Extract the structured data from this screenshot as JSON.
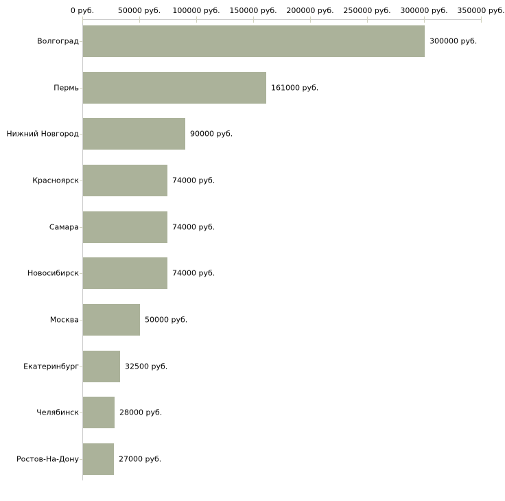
{
  "chart_data": {
    "type": "bar",
    "orientation": "horizontal",
    "title": "",
    "categories": [
      "Волгоград",
      "Пермь",
      "Нижний Новгород",
      "Красноярск",
      "Самара",
      "Новосибирск",
      "Москва",
      "Екатеринбург",
      "Челябинск",
      "Ростов-На-Дону"
    ],
    "values": [
      300000,
      161000,
      90000,
      74000,
      74000,
      74000,
      50000,
      32500,
      28000,
      27000
    ],
    "value_labels": [
      "300000 руб.",
      "161000 руб.",
      "90000 руб.",
      "74000 руб.",
      "74000 руб.",
      "74000 руб.",
      "50000 руб.",
      "32500 руб.",
      "28000 руб.",
      "27000 руб."
    ],
    "x_tick_values": [
      0,
      50000,
      100000,
      150000,
      200000,
      250000,
      300000,
      350000
    ],
    "x_tick_labels": [
      "0 руб.",
      "50000 руб.",
      "100000 руб.",
      "150000 руб.",
      "200000 руб.",
      "250000 руб.",
      "300000 руб.",
      "350000 руб."
    ],
    "xlim": [
      0,
      350000
    ],
    "unit": "руб.",
    "grid": false,
    "legend": null,
    "colors": {
      "bar": "#abb29a",
      "axis_line": "#cccccc",
      "tick_mark": "#d2d3be",
      "label_text": "#000000",
      "background": "#ffffff"
    }
  }
}
